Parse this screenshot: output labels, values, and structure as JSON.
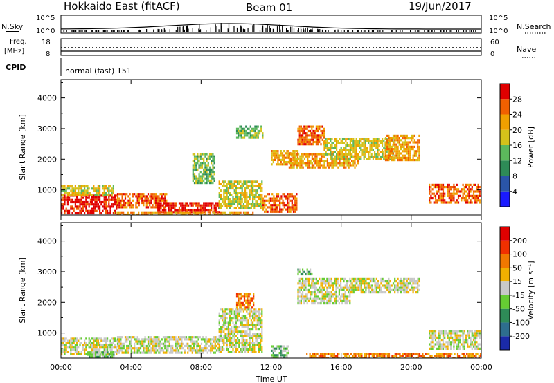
{
  "header": {
    "station": "Hokkaido East (fitACF)",
    "beam": "Beam 01",
    "date": "19/Jun/2017"
  },
  "strip_panels": {
    "nsky": {
      "label": "N.Sky",
      "ticks": [
        "10^5",
        "10^0"
      ],
      "right_label": "N.Search",
      "right_ticks": [
        "10^5",
        "10^0"
      ]
    },
    "freq": {
      "label_line1": "Freq.",
      "label_line2": "[MHz]",
      "ticks": [
        "18",
        "8"
      ],
      "right_label": "Nave",
      "right_ticks": [
        "60",
        "0"
      ]
    },
    "cpid": {
      "label": "CPID",
      "text": "normal (fast) 151"
    }
  },
  "chart_data": [
    {
      "type": "heatmap",
      "name": "power",
      "ylabel": "Slant Range [km]",
      "ylim": [
        180,
        4600
      ],
      "yticks": [
        "1000",
        "2000",
        "3000",
        "4000"
      ],
      "xlim_hours": [
        0,
        24
      ],
      "colorbar": {
        "label": "Power [dB]",
        "tick_labels": [
          "4",
          "8",
          "12",
          "16",
          "20",
          "24",
          "28"
        ],
        "colors": [
          "#1a1aff",
          "#2a55a8",
          "#2e8b57",
          "#5cb85c",
          "#d4c21a",
          "#f0a000",
          "#f06000",
          "#e00000"
        ]
      },
      "regions": [
        {
          "t0": 0.0,
          "t1": 3.2,
          "r0": 250,
          "r1": 850,
          "level": 7
        },
        {
          "t0": 0.0,
          "t1": 3.0,
          "r0": 850,
          "r1": 1150,
          "level": 4
        },
        {
          "t0": 3.2,
          "t1": 6.0,
          "r0": 400,
          "r1": 900,
          "level": 6
        },
        {
          "t0": 5.5,
          "t1": 9.0,
          "r0": 250,
          "r1": 600,
          "level": 7
        },
        {
          "t0": 9.0,
          "t1": 11.5,
          "r0": 400,
          "r1": 1300,
          "level": 4
        },
        {
          "t0": 10.0,
          "t1": 11.5,
          "r0": 2700,
          "r1": 3100,
          "level": 3
        },
        {
          "t0": 11.5,
          "t1": 13.5,
          "r0": 300,
          "r1": 900,
          "level": 6
        },
        {
          "t0": 12.0,
          "t1": 13.5,
          "r0": 1800,
          "r1": 2300,
          "level": 5
        },
        {
          "t0": 13.5,
          "t1": 15.0,
          "r0": 2500,
          "r1": 3100,
          "level": 6
        },
        {
          "t0": 13.0,
          "t1": 17.0,
          "r0": 1700,
          "r1": 2200,
          "level": 5
        },
        {
          "t0": 15.0,
          "t1": 19.0,
          "r0": 2000,
          "r1": 2700,
          "level": 4
        },
        {
          "t0": 18.5,
          "t1": 20.5,
          "r0": 2000,
          "r1": 2800,
          "level": 5
        },
        {
          "t0": 21.0,
          "t1": 24.0,
          "r0": 600,
          "r1": 1200,
          "level": 6
        },
        {
          "t0": 7.5,
          "t1": 8.8,
          "r0": 1200,
          "r1": 2200,
          "level": 3
        },
        {
          "t0": 3.0,
          "t1": 11.0,
          "r0": 200,
          "r1": 300,
          "level": 5
        }
      ]
    },
    {
      "type": "heatmap",
      "name": "velocity",
      "ylabel": "Slant Range [km]",
      "ylim": [
        180,
        4600
      ],
      "yticks": [
        "1000",
        "2000",
        "3000",
        "4000"
      ],
      "xlim_hours": [
        0,
        24
      ],
      "xticks": [
        "00:00",
        "04:00",
        "08:00",
        "12:00",
        "16:00",
        "20:00",
        "00:00"
      ],
      "xlabel": "Time UT",
      "colorbar": {
        "label": "Velocity [m s⁻¹]",
        "tick_labels": [
          "200",
          "100",
          "50",
          "15",
          "-15",
          "-50",
          "-100",
          "-200"
        ],
        "colors": [
          "#1a2aa8",
          "#2e6e8e",
          "#2e8b57",
          "#66cc33",
          "#c8c8c8",
          "#f0b000",
          "#f07800",
          "#f03000",
          "#e00000"
        ]
      },
      "regions": [
        {
          "t0": 0.0,
          "t1": 3.2,
          "r0": 300,
          "r1": 850,
          "level": 4
        },
        {
          "t0": 1.5,
          "t1": 3.0,
          "r0": 200,
          "r1": 400,
          "level": 3
        },
        {
          "t0": 3.2,
          "t1": 9.0,
          "r0": 350,
          "r1": 900,
          "level": 4
        },
        {
          "t0": 9.0,
          "t1": 11.5,
          "r0": 400,
          "r1": 1800,
          "level": 4
        },
        {
          "t0": 10.0,
          "t1": 11.0,
          "r0": 1800,
          "r1": 2300,
          "level": 6
        },
        {
          "t0": 12.0,
          "t1": 13.0,
          "r0": 200,
          "r1": 600,
          "level": 3
        },
        {
          "t0": 13.5,
          "t1": 16.5,
          "r0": 2000,
          "r1": 2800,
          "level": 4
        },
        {
          "t0": 13.5,
          "t1": 14.3,
          "r0": 2950,
          "r1": 3100,
          "level": 3
        },
        {
          "t0": 16.5,
          "t1": 20.5,
          "r0": 2300,
          "r1": 2800,
          "level": 4
        },
        {
          "t0": 21.0,
          "t1": 24.0,
          "r0": 500,
          "r1": 1100,
          "level": 4
        },
        {
          "t0": 14.0,
          "t1": 24.0,
          "r0": 200,
          "r1": 350,
          "level": 6
        }
      ]
    }
  ]
}
